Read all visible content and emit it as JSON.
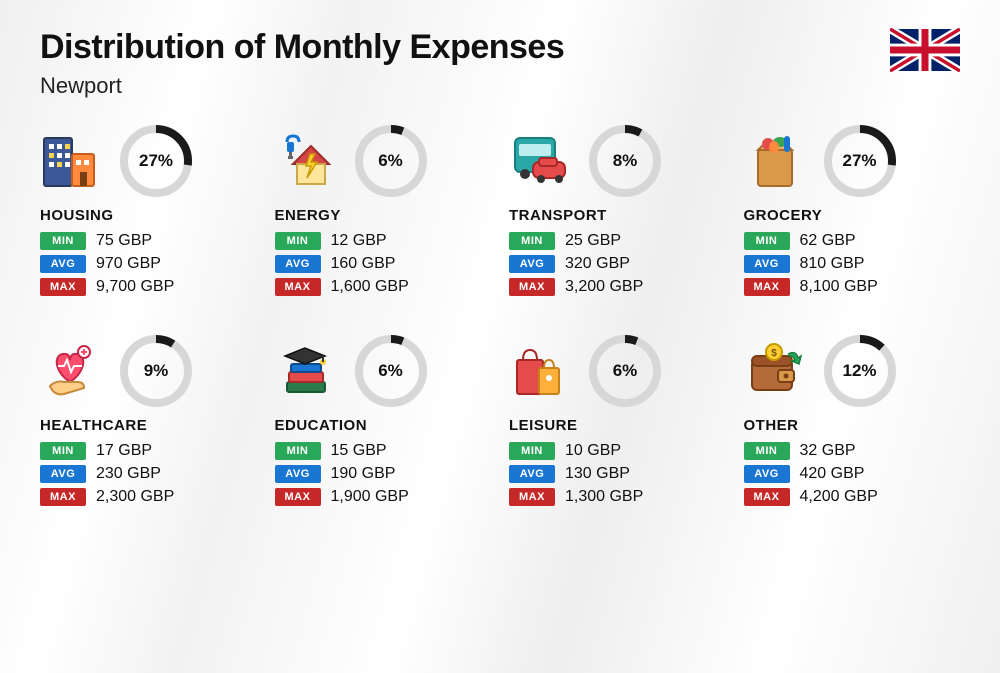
{
  "title": "Distribution of Monthly Expenses",
  "subtitle": "Newport",
  "currency": "GBP",
  "labels": {
    "min": "MIN",
    "avg": "AVG",
    "max": "MAX"
  },
  "colors": {
    "min_badge": "#2aa85a",
    "avg_badge": "#1976d2",
    "max_badge": "#c62828",
    "ring_bg": "#d7d7d7",
    "ring_fg": "#1a1a1a",
    "text": "#111111"
  },
  "ring": {
    "radius": 32,
    "stroke_width": 8
  },
  "categories": [
    {
      "key": "housing",
      "name": "HOUSING",
      "percent": 27,
      "min": "75 GBP",
      "avg": "970 GBP",
      "max": "9,700 GBP",
      "icon": "buildings"
    },
    {
      "key": "energy",
      "name": "ENERGY",
      "percent": 6,
      "min": "12 GBP",
      "avg": "160 GBP",
      "max": "1,600 GBP",
      "icon": "house-energy"
    },
    {
      "key": "transport",
      "name": "TRANSPORT",
      "percent": 8,
      "min": "25 GBP",
      "avg": "320 GBP",
      "max": "3,200 GBP",
      "icon": "bus-car"
    },
    {
      "key": "grocery",
      "name": "GROCERY",
      "percent": 27,
      "min": "62 GBP",
      "avg": "810 GBP",
      "max": "8,100 GBP",
      "icon": "grocery-bag"
    },
    {
      "key": "healthcare",
      "name": "HEALTHCARE",
      "percent": 9,
      "min": "17 GBP",
      "avg": "230 GBP",
      "max": "2,300 GBP",
      "icon": "heart-hand"
    },
    {
      "key": "education",
      "name": "EDUCATION",
      "percent": 6,
      "min": "15 GBP",
      "avg": "190 GBP",
      "max": "1,900 GBP",
      "icon": "grad-books"
    },
    {
      "key": "leisure",
      "name": "LEISURE",
      "percent": 6,
      "min": "10 GBP",
      "avg": "130 GBP",
      "max": "1,300 GBP",
      "icon": "shopping-bags"
    },
    {
      "key": "other",
      "name": "OTHER",
      "percent": 12,
      "min": "32 GBP",
      "avg": "420 GBP",
      "max": "4,200 GBP",
      "icon": "wallet"
    }
  ]
}
